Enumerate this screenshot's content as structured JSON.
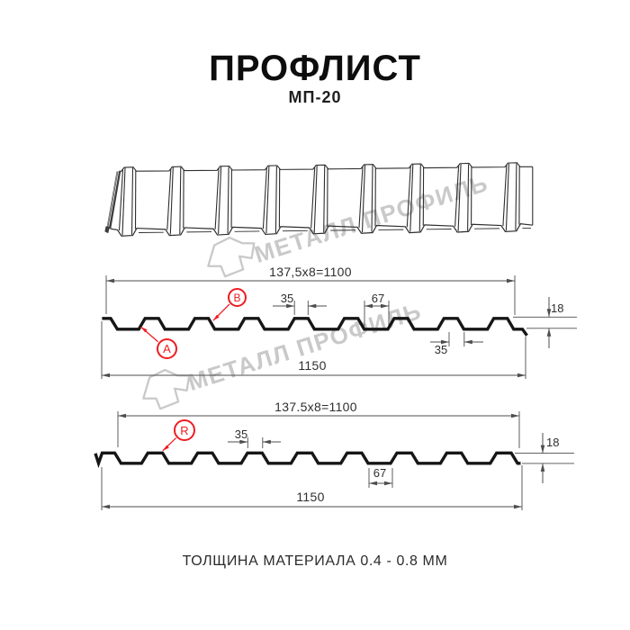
{
  "header": {
    "title": "ПРОФЛИСТ",
    "subtitle": "МП-20"
  },
  "watermark": {
    "brand": "МЕТАЛЛ ПРОФИЛЬ",
    "color": "#c9c9c9"
  },
  "colors": {
    "background": "#ffffff",
    "line": "#161616",
    "dim": "#4d4d4d",
    "sheet_line": "#2e2e2e",
    "accent_red": "#ee1c23"
  },
  "profile_top": {
    "labels": {
      "a": "A",
      "b": "B"
    },
    "dims": {
      "pitch_total": "137,5x8=1100",
      "rib_top_width": "35",
      "valley_width": "67",
      "height": "18",
      "rib_base_width": "35",
      "overall_width": "1150"
    }
  },
  "profile_bottom": {
    "labels": {
      "r": "R"
    },
    "dims": {
      "pitch_total": "137.5x8=1100",
      "rib_top_width": "35",
      "valley_width": "67",
      "height": "18",
      "overall_width": "1150"
    }
  },
  "footer": {
    "note": "ТОЛЩИНА МАТЕРИАЛА 0.4 - 0.8 ММ"
  },
  "icons": {
    "sheet_3d": "corrugated-sheet-3d",
    "logo": "metall-profil-logo"
  }
}
